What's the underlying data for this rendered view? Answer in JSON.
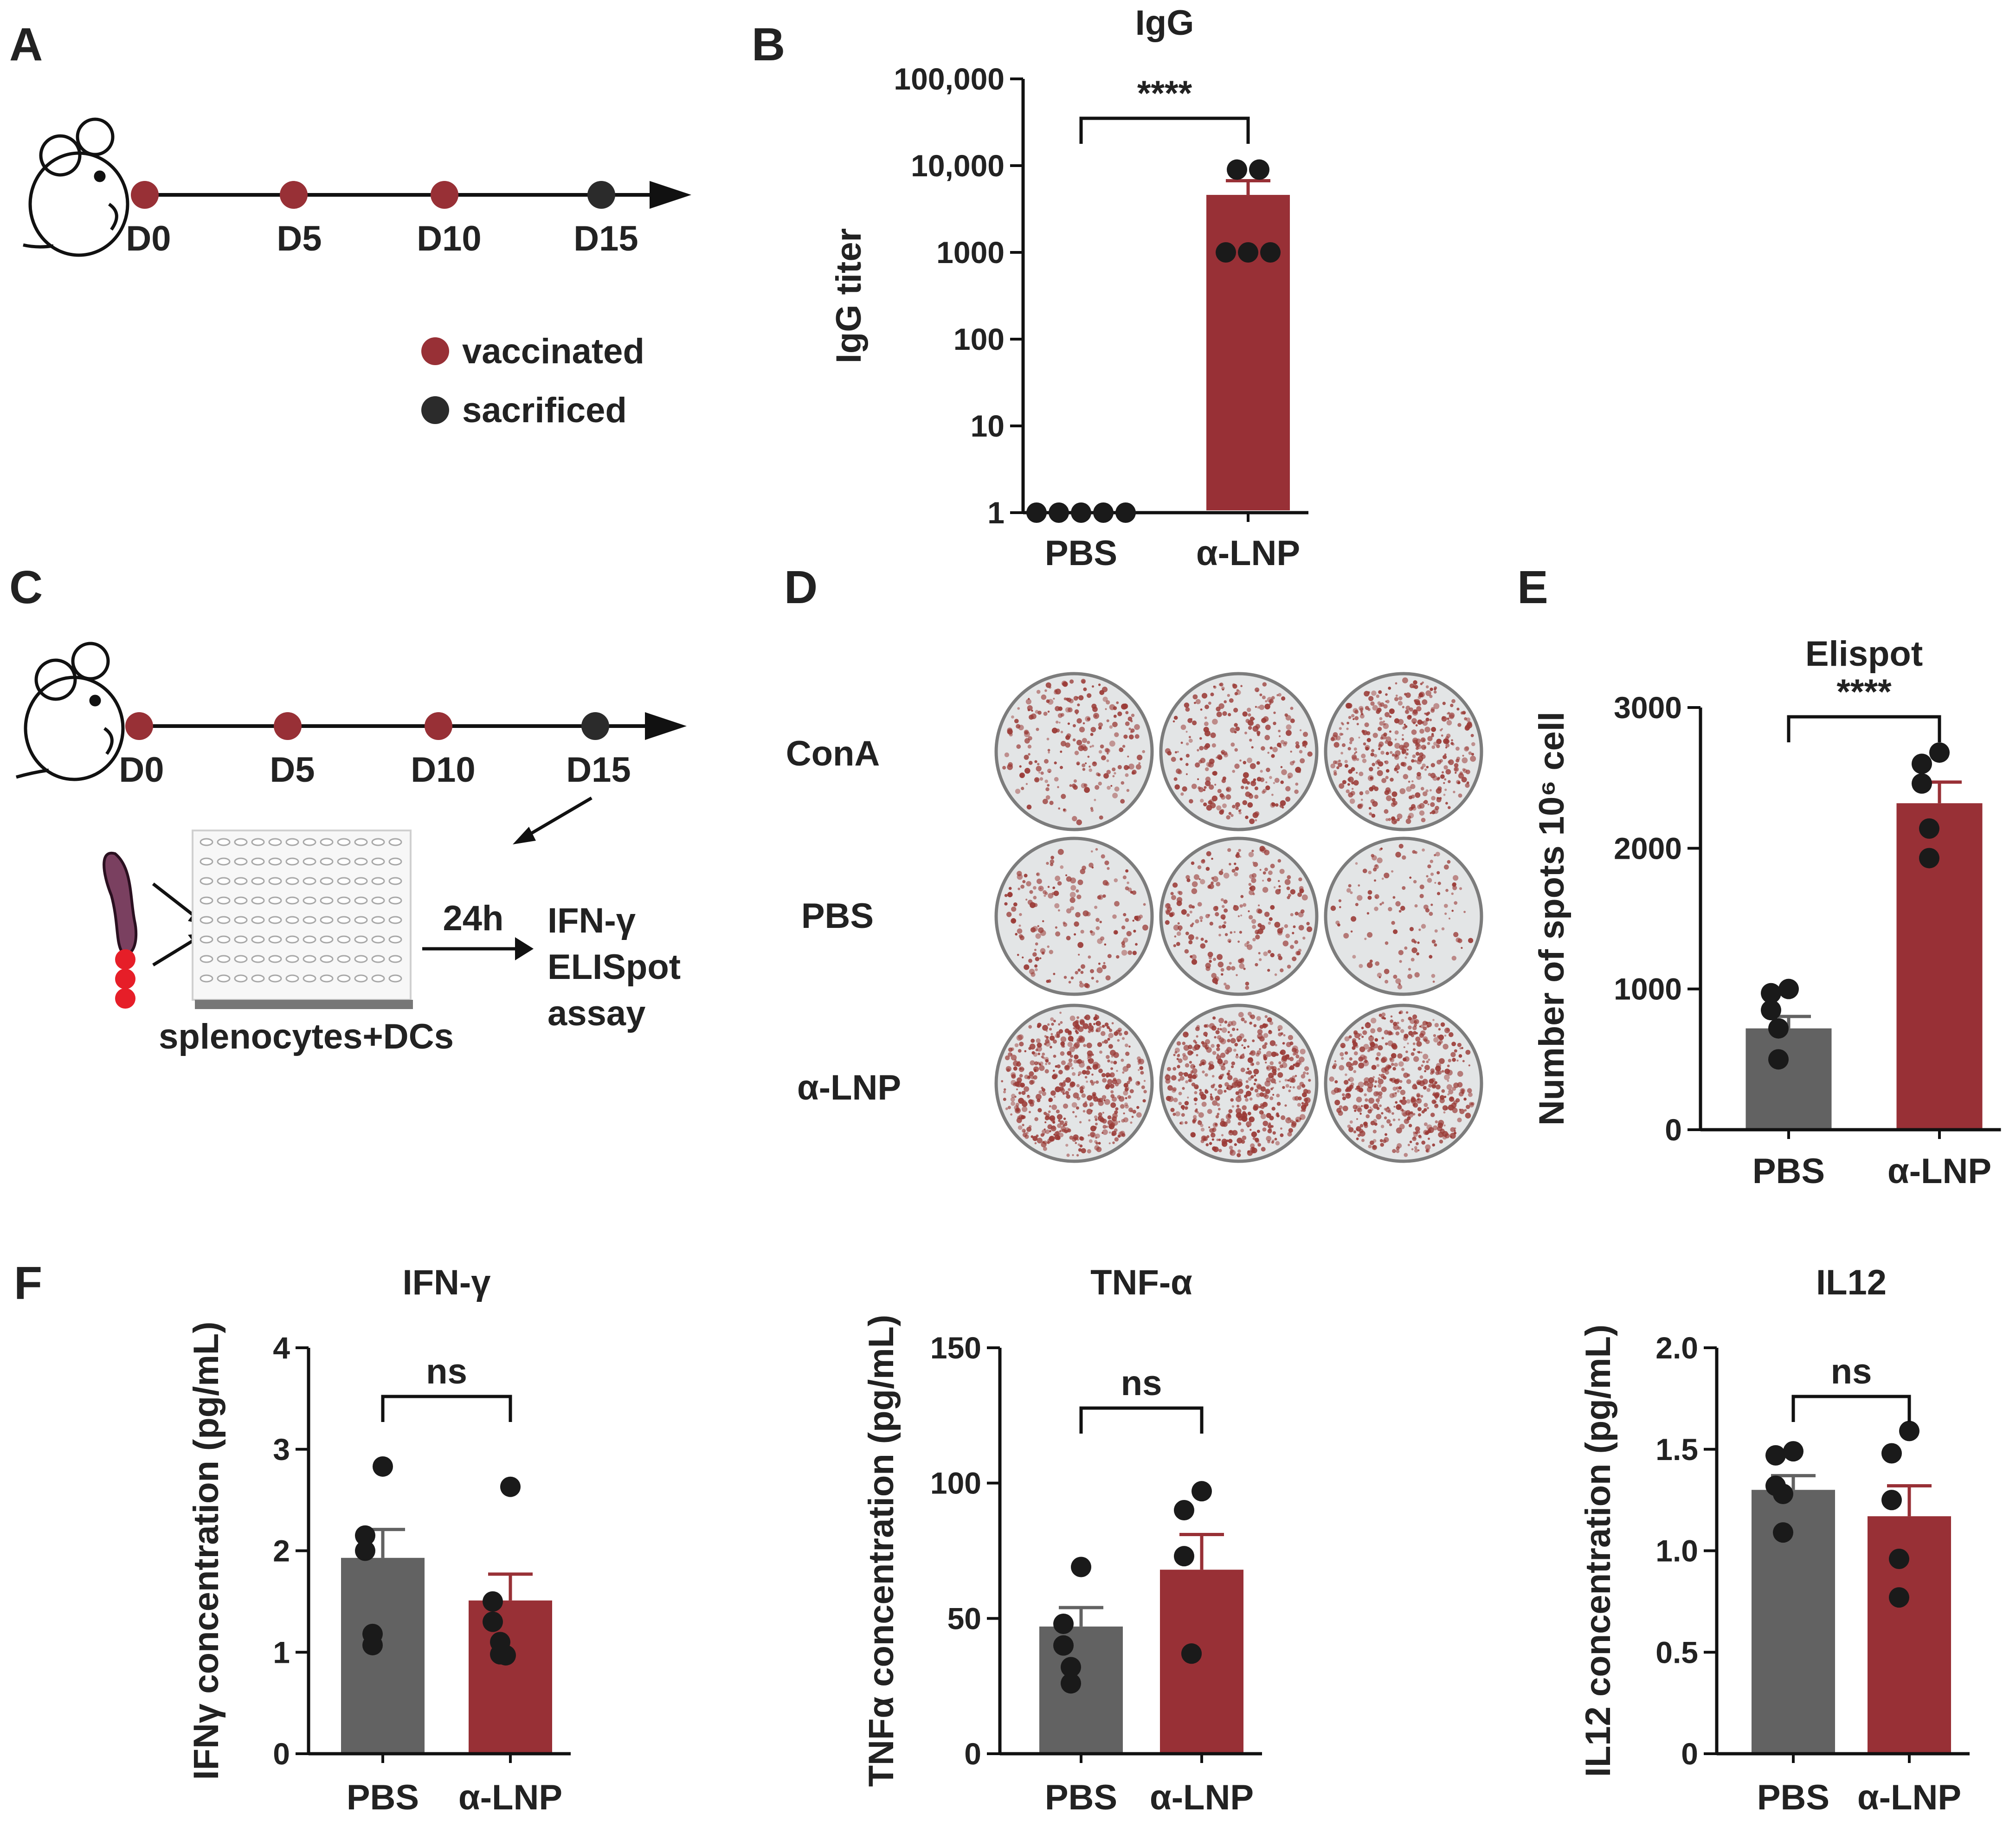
{
  "panels": {
    "A": "A",
    "B": "B",
    "C": "C",
    "D": "D",
    "E": "E",
    "F": "F"
  },
  "timeline": {
    "days": [
      "D0",
      "D5",
      "D10",
      "D15"
    ],
    "legend": [
      {
        "label": "vaccinated",
        "color": "#983036"
      },
      {
        "label": "sacrificed",
        "color": "#2b2b2b"
      }
    ]
  },
  "workflow": {
    "incubation": "24h",
    "assay_lines": [
      "IFN-γ",
      "ELISpot",
      "assay"
    ],
    "plate_caption": "splenocytes+DCs"
  },
  "elispot_wells": {
    "rows": [
      "ConA",
      "PBS",
      "α-LNP"
    ],
    "relative_density": [
      [
        0.45,
        0.5,
        0.8
      ],
      [
        0.35,
        0.45,
        0.25
      ],
      [
        1.0,
        1.0,
        0.95
      ]
    ]
  },
  "colors": {
    "pbs": "#626262",
    "lnp": "#983036",
    "dot": "#1a1a1a",
    "spot": "#9a3a36",
    "cell": "#e61e28"
  },
  "chart_data": [
    {
      "id": "B",
      "type": "bar",
      "scale": "log",
      "title": "IgG",
      "xlabel": "",
      "ylabel": "IgG titer",
      "categories": [
        "PBS",
        "α-LNP"
      ],
      "values": [
        1,
        4600
      ],
      "sem": [
        0,
        2100
      ],
      "points": [
        [
          1,
          1,
          1,
          1,
          1
        ],
        [
          9000,
          9000,
          1000,
          1000,
          1000
        ]
      ],
      "ylim": [
        1,
        100000
      ],
      "yticks": [
        1,
        10,
        100,
        1000,
        10000,
        100000
      ],
      "yticklabels": [
        "1",
        "10",
        "100",
        "1000",
        "10,000",
        "100,000"
      ],
      "significance": "****"
    },
    {
      "id": "E",
      "type": "bar",
      "scale": "linear",
      "title": "Elispot",
      "xlabel": "",
      "ylabel": "Number of spots 10⁶ cell",
      "categories": [
        "PBS",
        "α-LNP"
      ],
      "values": [
        720,
        2320
      ],
      "sem": [
        85,
        150
      ],
      "points": [
        [
          1000,
          970,
          850,
          720,
          500
        ],
        [
          2680,
          2600,
          2460,
          2140,
          1930
        ]
      ],
      "ylim": [
        0,
        3000
      ],
      "yticks": [
        0,
        1000,
        2000,
        3000
      ],
      "yticklabels": [
        "0",
        "1000",
        "2000",
        "3000"
      ],
      "significance": "****"
    },
    {
      "id": "F1",
      "type": "bar",
      "scale": "linear",
      "title": "IFN-γ",
      "xlabel": "",
      "ylabel": "IFNγ concentration (pg/mL)",
      "categories": [
        "PBS",
        "α-LNP"
      ],
      "values": [
        1.93,
        1.51
      ],
      "sem": [
        0.28,
        0.26
      ],
      "points": [
        [
          2.83,
          2.15,
          2.0,
          1.18,
          1.07
        ],
        [
          2.63,
          1.5,
          1.3,
          1.1,
          0.98,
          0.97
        ]
      ],
      "ylim": [
        0,
        4
      ],
      "yticks": [
        0,
        1,
        2,
        3,
        4
      ],
      "yticklabels": [
        "0",
        "1",
        "2",
        "3",
        "4"
      ],
      "significance": "ns"
    },
    {
      "id": "F2",
      "type": "bar",
      "scale": "linear",
      "title": "TNF-α",
      "xlabel": "",
      "ylabel": "TNFα concentration (pg/mL)",
      "categories": [
        "PBS",
        "α-LNP"
      ],
      "values": [
        47,
        68
      ],
      "sem": [
        7,
        13
      ],
      "points": [
        [
          69,
          48,
          40,
          32,
          26
        ],
        [
          97,
          90,
          73,
          37,
          37
        ]
      ],
      "ylim": [
        0,
        150
      ],
      "yticks": [
        0,
        50,
        100,
        150
      ],
      "yticklabels": [
        "0",
        "50",
        "100",
        "150"
      ],
      "significance": "ns"
    },
    {
      "id": "F3",
      "type": "bar",
      "scale": "linear",
      "title": "IL12",
      "xlabel": "",
      "ylabel": "IL12 concentration (pg/mL)",
      "categories": [
        "PBS",
        "α-LNP"
      ],
      "values": [
        1.3,
        1.17
      ],
      "sem": [
        0.07,
        0.15
      ],
      "points": [
        [
          1.49,
          1.47,
          1.32,
          1.28,
          1.09
        ],
        [
          1.59,
          1.48,
          1.25,
          0.96,
          0.77
        ]
      ],
      "ylim": [
        0,
        2.0
      ],
      "yticks": [
        0,
        0.5,
        1.0,
        1.5,
        2.0
      ],
      "yticklabels": [
        "0",
        "0.5",
        "1.0",
        "1.5",
        "2.0"
      ],
      "significance": "ns"
    }
  ]
}
